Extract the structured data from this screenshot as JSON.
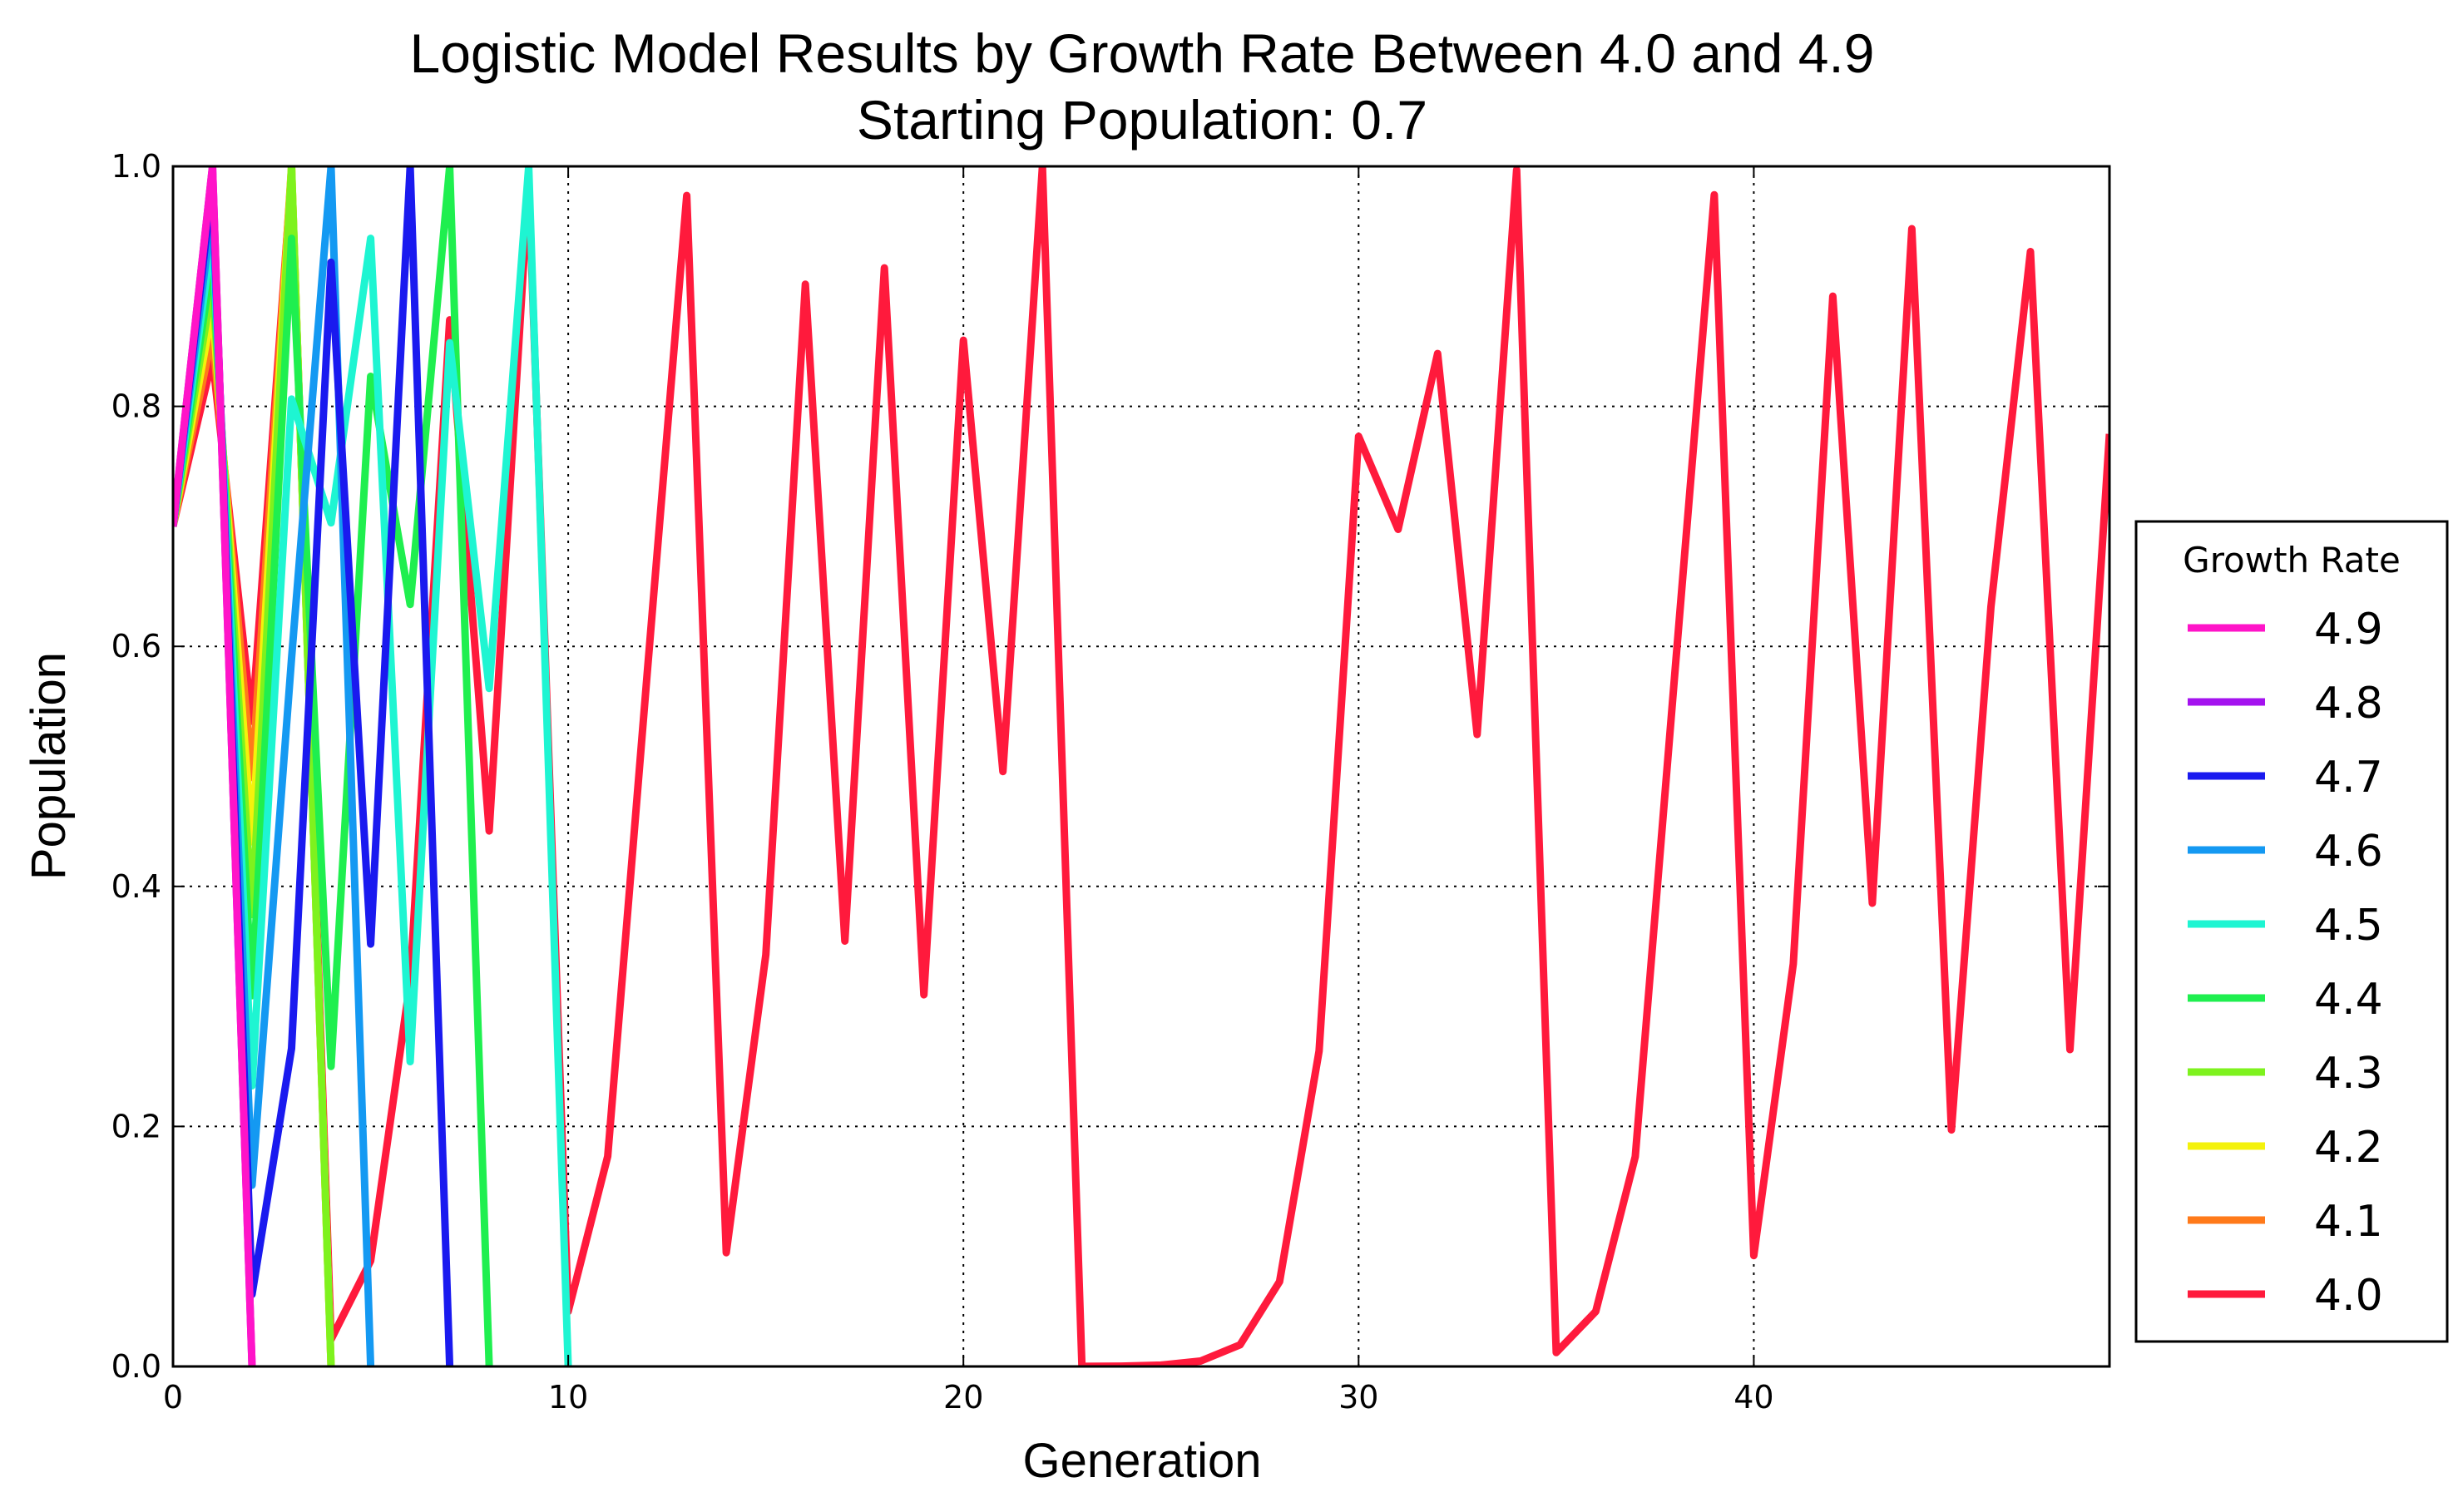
{
  "chart_data": {
    "type": "line",
    "title": "Logistic Model Results by Growth Rate Between 4.0 and 4.9",
    "subtitle": "Starting Population: 0.7",
    "xlabel": "Generation",
    "ylabel": "Population",
    "xlim": [
      0,
      49
    ],
    "ylim": [
      0.0,
      1.0
    ],
    "xticks": [
      0,
      10,
      20,
      30,
      40
    ],
    "xtick_labels": [
      "0",
      "10",
      "20",
      "30",
      "40"
    ],
    "yticks": [
      0.0,
      0.2,
      0.4,
      0.6,
      0.8,
      1.0
    ],
    "ytick_labels": [
      "0.0",
      "0.2",
      "0.4",
      "0.6",
      "0.8",
      "1.0"
    ],
    "grid": true,
    "legend_title": "Growth Rate",
    "legend_position": "right",
    "series": [
      {
        "name": "4.0",
        "color": "#ff1a3c",
        "x": [
          0,
          1,
          2,
          3,
          4,
          5,
          6,
          7,
          8,
          9,
          10,
          11,
          12,
          13,
          14,
          15,
          16,
          17,
          18,
          19,
          20,
          21,
          22,
          23,
          24,
          25,
          26,
          27,
          28,
          29,
          30,
          31,
          32,
          33,
          34,
          35,
          36,
          37,
          38,
          39,
          40,
          41,
          42,
          43,
          44,
          45,
          46,
          47,
          48,
          49
        ],
        "y": [
          0.7,
          0.84,
          0.5376,
          0.9943,
          0.0225,
          0.088,
          0.3212,
          0.8721,
          0.4462,
          0.9884,
          0.0459,
          0.1751,
          0.5779,
          0.9757,
          0.0948,
          0.3432,
          0.9017,
          0.3545,
          0.9154,
          0.3097,
          0.8551,
          0.4957,
          0.99998,
          0.0001,
          0.0003,
          0.0011,
          0.0045,
          0.018,
          0.0707,
          0.2628,
          0.775,
          0.6975,
          0.844,
          0.5266,
          0.9971,
          0.0116,
          0.0458,
          0.1748,
          0.5769,
          0.9763,
          0.0924,
          0.3355,
          0.8918,
          0.386,
          0.948,
          0.1971,
          0.633,
          0.929,
          0.264,
          0.777
        ]
      },
      {
        "name": "4.1",
        "color": "#ff7a1a",
        "x": [
          0,
          1,
          2,
          3,
          4
        ],
        "y": [
          0.7,
          0.861,
          0.4907,
          1.0,
          0.0
        ]
      },
      {
        "name": "4.2",
        "color": "#f4f20c",
        "x": [
          0,
          1,
          2,
          3,
          4
        ],
        "y": [
          0.7,
          0.882,
          0.4371,
          1.0,
          0.0
        ]
      },
      {
        "name": "4.3",
        "color": "#7ef21e",
        "x": [
          0,
          1,
          2,
          3,
          4
        ],
        "y": [
          0.7,
          0.903,
          0.3766,
          1.0,
          0.0
        ]
      },
      {
        "name": "4.4",
        "color": "#1fef4f",
        "x": [
          0,
          1,
          2,
          3,
          4,
          5,
          6,
          7,
          8
        ],
        "y": [
          0.7,
          0.924,
          0.309,
          0.94,
          0.25,
          0.825,
          0.635,
          1.0,
          0.0
        ]
      },
      {
        "name": "4.5",
        "color": "#1ef5d2",
        "x": [
          0,
          1,
          2,
          3,
          4,
          5,
          6,
          7,
          8,
          9,
          10
        ],
        "y": [
          0.7,
          0.945,
          0.2339,
          0.806,
          0.703,
          0.94,
          0.254,
          0.853,
          0.565,
          1.0,
          0.0
        ]
      },
      {
        "name": "4.6",
        "color": "#1499f2",
        "x": [
          0,
          1,
          2,
          3,
          4,
          5
        ],
        "y": [
          0.7,
          0.966,
          0.151,
          0.59,
          1.0,
          0.0
        ]
      },
      {
        "name": "4.7",
        "color": "#1a1aef",
        "x": [
          0,
          1,
          2,
          3,
          4,
          5,
          6,
          7
        ],
        "y": [
          0.7,
          0.987,
          0.06,
          0.265,
          0.92,
          0.352,
          1.0,
          0.0
        ]
      },
      {
        "name": "4.8",
        "color": "#a412ef",
        "x": [
          0,
          1,
          2
        ],
        "y": [
          0.7,
          1.0,
          0.0
        ]
      },
      {
        "name": "4.9",
        "color": "#ff14c8",
        "x": [
          0,
          1,
          2
        ],
        "y": [
          0.7,
          1.0,
          0.0
        ]
      }
    ],
    "legend_order": [
      "4.9",
      "4.8",
      "4.7",
      "4.6",
      "4.5",
      "4.4",
      "4.3",
      "4.2",
      "4.1",
      "4.0"
    ]
  }
}
